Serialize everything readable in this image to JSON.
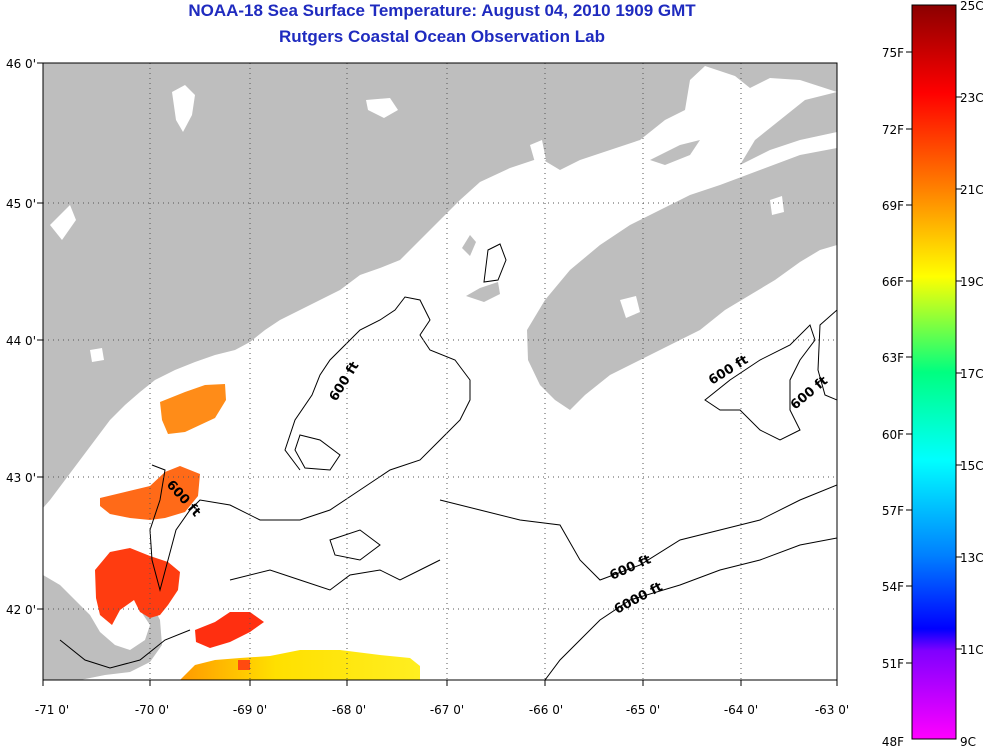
{
  "header": {
    "title": "NOAA-18 Sea Surface Temperature:  August 04, 2010 1909 GMT",
    "subtitle": "Rutgers Coastal Ocean Observation Lab"
  },
  "map": {
    "lat_labels": [
      "46 0'",
      "45 0'",
      "44 0'",
      "43 0'",
      "42 0'"
    ],
    "lon_labels": [
      "-71 0'",
      "-70 0'",
      "-69 0'",
      "-68 0'",
      "-67 0'",
      "-66 0'",
      "-65 0'",
      "-64 0'",
      "-63 0'"
    ],
    "contour_labels": [
      "600 ft",
      "600 ft",
      "600 ft",
      "600 ft",
      "600 ft",
      "6000 ft"
    ],
    "land_color": "#bebebe",
    "water_color": "#ffffff"
  },
  "colorbar": {
    "celsius_labels": [
      "25C",
      "23C",
      "21C",
      "19C",
      "17C",
      "15C",
      "13C",
      "11C",
      "9C"
    ],
    "fahrenheit_labels": [
      "75F",
      "72F",
      "69F",
      "66F",
      "63F",
      "60F",
      "57F",
      "54F",
      "51F",
      "48F"
    ],
    "range_c": [
      9,
      25
    ],
    "colors": [
      "#8b0000",
      "#ff0000",
      "#ff8000",
      "#ffff00",
      "#00ff80",
      "#00ffff",
      "#0080ff",
      "#0000ff",
      "#8000ff",
      "#ff00ff"
    ]
  }
}
